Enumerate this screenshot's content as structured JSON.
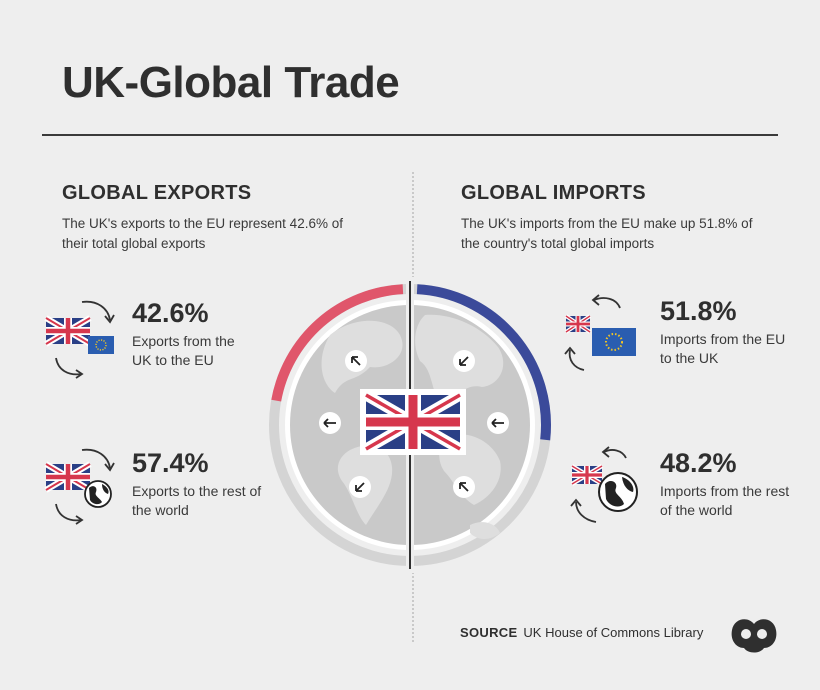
{
  "title": "UK-Global Trade",
  "exports": {
    "heading": "GLOBAL EXPORTS",
    "description": "The UK's exports to the EU represent 42.6% of their total global exports",
    "items": [
      {
        "value": "42.6%",
        "label": "Exports from the UK to the EU"
      },
      {
        "value": "57.4%",
        "label": "Exports to the rest of the world"
      }
    ]
  },
  "imports": {
    "heading": "GLOBAL IMPORTS",
    "description": "The UK's imports from the EU make up 51.8% of the country's total global imports",
    "items": [
      {
        "value": "51.8%",
        "label": "Imports from the EU to the UK"
      },
      {
        "value": "48.2%",
        "label": "Imports from the rest of the world"
      }
    ]
  },
  "source": {
    "label": "SOURCE",
    "text": "UK House of Commons Library"
  },
  "chart_data": {
    "type": "pie",
    "title": "UK-Global Trade",
    "series": [
      {
        "name": "GLOBAL EXPORTS",
        "categories": [
          "Exports from the UK to the EU",
          "Exports to the rest of the world"
        ],
        "values": [
          42.6,
          57.4
        ]
      },
      {
        "name": "GLOBAL IMPORTS",
        "categories": [
          "Imports from the EU to the UK",
          "Imports from the rest of the world"
        ],
        "values": [
          51.8,
          48.2
        ]
      }
    ]
  },
  "colors": {
    "exports_accent": "#e0566b",
    "imports_accent": "#3b4a9a",
    "ring_track": "#d4d4d4",
    "globe": "#c9c9c9",
    "land": "#dedede",
    "eu_blue": "#2a5db0",
    "eu_star": "#f3c623",
    "uk_blue": "#2a3f86",
    "uk_red": "#d6374d",
    "text": "#2f2f2f"
  },
  "icons": [
    "uk-flag-icon",
    "eu-flag-icon",
    "globe-icon",
    "arrow-icon",
    "logo-icon"
  ]
}
